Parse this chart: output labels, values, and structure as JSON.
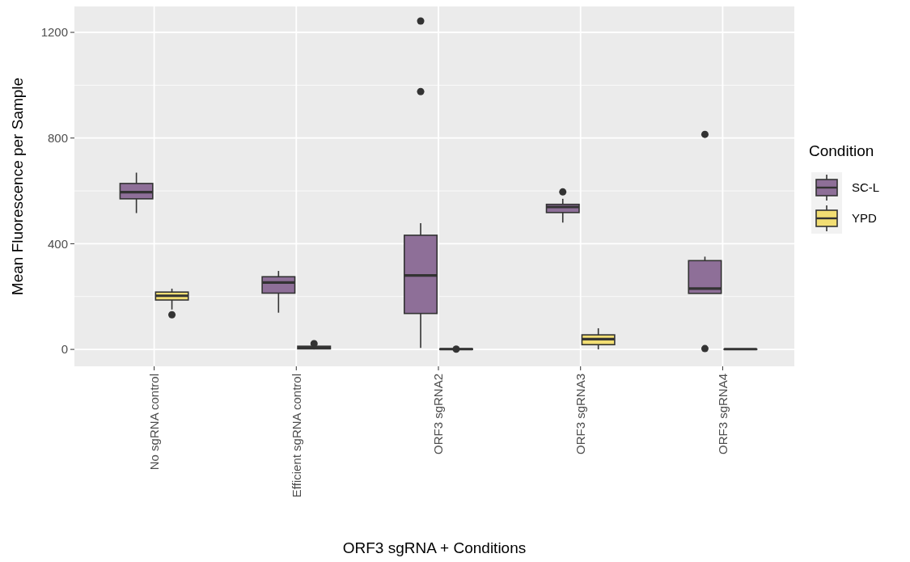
{
  "chart_data": {
    "type": "box",
    "xlabel": "ORF3 sgRNA + Conditions",
    "ylabel": "Mean Fluorescence per Sample",
    "legend_title": "Condition",
    "legend": "right",
    "grid": true,
    "categories": [
      "No sgRNA control",
      "Efficient sgRNA control",
      "ORF3 sgRNA2",
      "ORF3 sgRNA3",
      "ORF3 sgRNA4"
    ],
    "ylim": [
      -64,
      1298
    ],
    "yticks": [
      0,
      400,
      800,
      1200
    ],
    "series": [
      {
        "name": "SC-L",
        "color": "#8e6f98",
        "boxes": [
          {
            "low": 516,
            "q1": 570,
            "median": 595,
            "q3": 628,
            "high": 669
          },
          {
            "low": 139,
            "q1": 213,
            "median": 253,
            "q3": 275,
            "high": 297
          },
          {
            "low": 6,
            "q1": 136,
            "median": 280,
            "q3": 432,
            "high": 478,
            "outliers": [
              976,
              1243
            ]
          },
          {
            "low": 480,
            "q1": 518,
            "median": 539,
            "q3": 549,
            "high": 570,
            "outliers": [
              596
            ]
          },
          {
            "low": 212,
            "q1": 212,
            "median": 230,
            "q3": 336,
            "high": 351,
            "outliers": [
              3,
              814
            ]
          }
        ]
      },
      {
        "name": "YPD",
        "color": "#f2de73",
        "boxes": [
          {
            "low": 151,
            "q1": 187,
            "median": 203,
            "q3": 217,
            "high": 230,
            "outliers": [
              131
            ]
          },
          {
            "low": 0,
            "q1": 2,
            "median": 6,
            "q3": 12,
            "high": 14,
            "outliers": [
              22
            ]
          },
          {
            "low": 0,
            "q1": 0,
            "median": 1,
            "q3": 2,
            "high": 3,
            "outliers": [
              1
            ]
          },
          {
            "low": 0,
            "q1": 18,
            "median": 39,
            "q3": 55,
            "high": 80
          },
          {
            "low": 0,
            "q1": 0,
            "median": 1,
            "q3": 1,
            "high": 2
          }
        ]
      }
    ]
  }
}
